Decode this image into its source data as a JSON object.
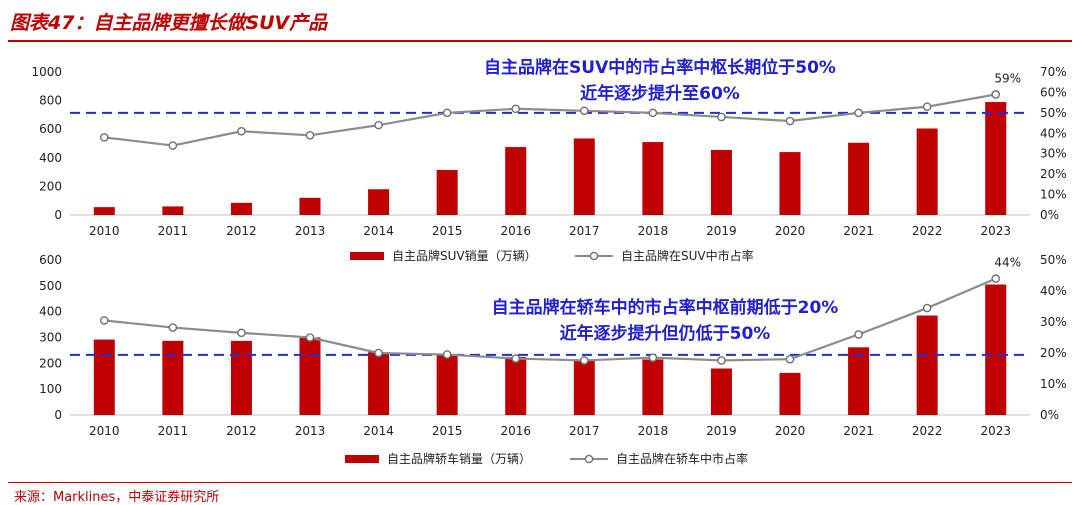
{
  "figure": {
    "title": "图表47：自主品牌更擅长做SUV产品",
    "source": "来源：Marklines，中泰证券研究所"
  },
  "colors": {
    "bar": "#c00000",
    "line": "#8c8c8c",
    "annotation": "#1f1fd6",
    "ref_line": "#1f2fd6"
  },
  "chart_data": [
    {
      "type": "bar",
      "categories": [
        "2010",
        "2011",
        "2012",
        "2013",
        "2014",
        "2015",
        "2016",
        "2017",
        "2018",
        "2019",
        "2020",
        "2021",
        "2022",
        "2023"
      ],
      "ylim": [
        0,
        1000
      ],
      "y_ticks": [
        0,
        200,
        400,
        600,
        800,
        1000
      ],
      "y2lim": [
        0,
        70
      ],
      "y2_ticks": [
        "0%",
        "10%",
        "20%",
        "30%",
        "40%",
        "50%",
        "60%",
        "70%"
      ],
      "series": [
        {
          "name": "自主品牌SUV销量（万辆）",
          "type": "bar",
          "axis": "left",
          "values": [
            55,
            60,
            85,
            120,
            180,
            315,
            475,
            535,
            510,
            455,
            440,
            505,
            605,
            790
          ]
        },
        {
          "name": "自主品牌在SUV中市占率",
          "type": "line",
          "axis": "right",
          "values": [
            38,
            34,
            41,
            39,
            44,
            50,
            52,
            51,
            50,
            48,
            46,
            50,
            53,
            59
          ]
        }
      ],
      "reference_line": 50,
      "end_label": "59%",
      "annotation": [
        "自主品牌在SUV中的市占率中枢长期位于50%",
        "近年逐步提升至60%"
      ],
      "legend": "bottom"
    },
    {
      "type": "bar",
      "categories": [
        "2010",
        "2011",
        "2012",
        "2013",
        "2014",
        "2015",
        "2016",
        "2017",
        "2018",
        "2019",
        "2020",
        "2021",
        "2022",
        "2023"
      ],
      "ylim": [
        0,
        600
      ],
      "y_ticks": [
        0,
        100,
        200,
        300,
        400,
        500,
        600
      ],
      "y2lim": [
        0,
        50
      ],
      "y2_ticks": [
        "0%",
        "10%",
        "20%",
        "30%",
        "40%",
        "50%"
      ],
      "series": [
        {
          "name": "自主品牌轿车销量（万辆）",
          "type": "bar",
          "axis": "left",
          "values": [
            292,
            287,
            287,
            300,
            243,
            235,
            225,
            215,
            215,
            180,
            163,
            262,
            385,
            505
          ]
        },
        {
          "name": "自主品牌在轿车中市占率",
          "type": "line",
          "axis": "right",
          "values": [
            30.5,
            28.2,
            26.5,
            25,
            20,
            19.5,
            18.2,
            17.6,
            18.5,
            17.6,
            18,
            26,
            34.5,
            44
          ]
        }
      ],
      "reference_line": 19.4,
      "end_label": "44%",
      "annotation": [
        "自主品牌在轿车中的市占率中枢前期低于20%",
        "近年逐步提升但仍低于50%"
      ],
      "legend": "bottom"
    }
  ]
}
